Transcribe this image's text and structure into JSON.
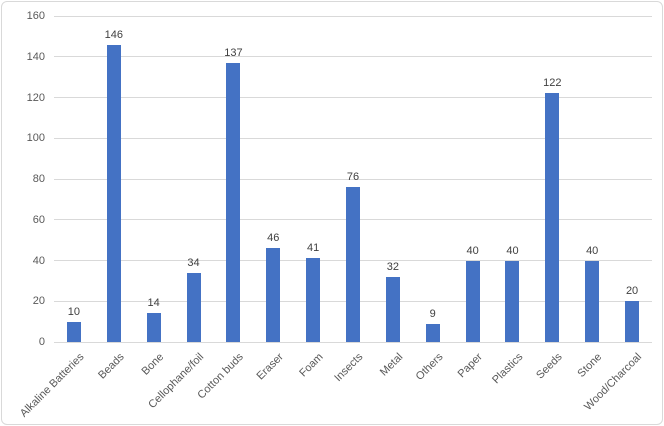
{
  "chart_data": {
    "type": "bar",
    "title": "",
    "xlabel": "",
    "ylabel": "",
    "categories": [
      "Alkaline Batteries",
      "Beads",
      "Bone",
      "Cellophane/foil",
      "Cotton buds",
      "Eraser",
      "Foam",
      "Insects",
      "Metal",
      "Others",
      "Paper",
      "Plastics",
      "Seeds",
      "Stone",
      "Wood/Charcoal"
    ],
    "values": [
      10,
      146,
      14,
      34,
      137,
      46,
      41,
      76,
      32,
      9,
      40,
      40,
      122,
      40,
      20
    ],
    "data_labels": [
      "10",
      "146",
      "14",
      "34",
      "137",
      "46",
      "41",
      "76",
      "32",
      "9",
      "40",
      "40",
      "122",
      "40",
      "20"
    ],
    "ylim": [
      0,
      160
    ],
    "yticks": [
      0,
      20,
      40,
      60,
      80,
      100,
      120,
      140,
      160
    ],
    "grid": true,
    "legend": false,
    "colors": {
      "bar": "#4472C4",
      "gridline": "#D9D9D9",
      "axis_line": "#D9D9D9",
      "tick_label": "#595959",
      "data_label": "#404040",
      "chart_border": "#D9D9D9",
      "background": "#FFFFFF"
    }
  }
}
